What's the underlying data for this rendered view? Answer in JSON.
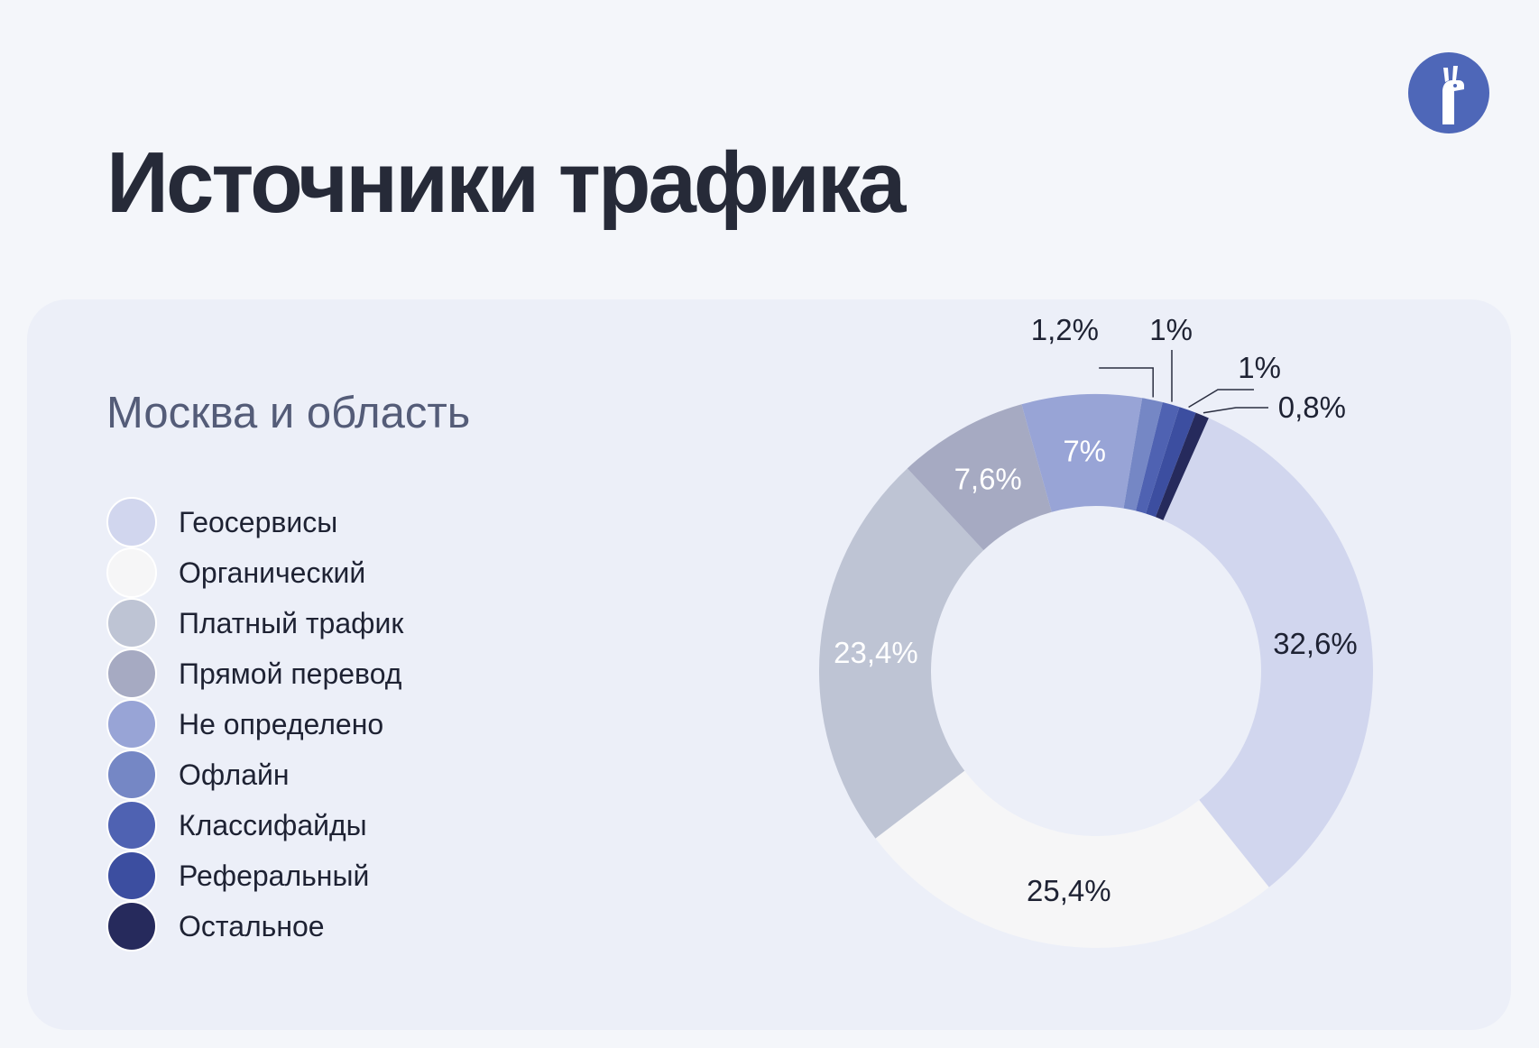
{
  "title": "Источники трафика",
  "logo": {
    "icon": "llama-icon",
    "background": "#4e67b8"
  },
  "card": {
    "subtitle": "Москва и область"
  },
  "chart_data": {
    "type": "donut",
    "title": "",
    "series": [
      {
        "label": "Геосервисы",
        "value": 32.6,
        "value_label": "32,6%",
        "color": "#d1d6ee"
      },
      {
        "label": "Органический",
        "value": 25.4,
        "value_label": "25,4%",
        "color": "#f6f6f7"
      },
      {
        "label": "Платный трафик",
        "value": 23.4,
        "value_label": "23,4%",
        "color": "#bec4d4"
      },
      {
        "label": "Прямой перевод",
        "value": 7.6,
        "value_label": "7,6%",
        "color": "#a6aac2"
      },
      {
        "label": "Не определено",
        "value": 7,
        "value_label": "7%",
        "color": "#98a4d6"
      },
      {
        "label": "Офлайн",
        "value": 1.2,
        "value_label": "1,2%",
        "color": "#7587c5"
      },
      {
        "label": "Классифайды",
        "value": 1,
        "value_label": "1%",
        "color": "#4f62b2"
      },
      {
        "label": "Реферальный",
        "value": 1,
        "value_label": "1%",
        "color": "#3c4ea0"
      },
      {
        "label": "Остальное",
        "value": 0.8,
        "value_label": "0,8%",
        "color": "#262a5c"
      }
    ]
  }
}
